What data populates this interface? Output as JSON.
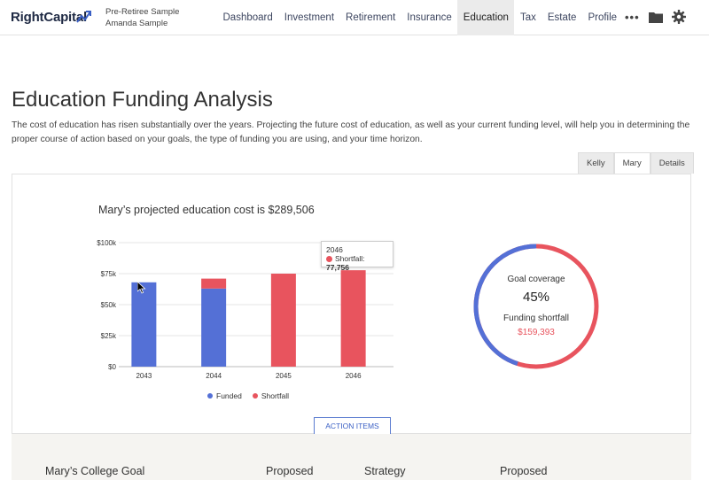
{
  "brand": {
    "name": "RightCapital"
  },
  "client": {
    "line1": "Pre-Retiree Sample",
    "line2": "Amanda Sample"
  },
  "nav": {
    "items": [
      {
        "label": "Dashboard"
      },
      {
        "label": "Investment"
      },
      {
        "label": "Retirement"
      },
      {
        "label": "Insurance"
      },
      {
        "label": "Education"
      },
      {
        "label": "Tax"
      },
      {
        "label": "Estate"
      },
      {
        "label": "Profile"
      }
    ],
    "active": "Education",
    "more": "•••"
  },
  "page": {
    "title": "Education Funding Analysis",
    "description": "The cost of education has risen substantially over the years. Projecting the future cost of education, as well as your current funding level, will help you in determining the proper course of action based on your goals, the type of funding you are using, and your time horizon."
  },
  "tabs": [
    {
      "label": "Kelly"
    },
    {
      "label": "Mary"
    },
    {
      "label": "Details"
    }
  ],
  "active_tab": "Mary",
  "chart_title": "Mary’s projected education cost is $289,506",
  "tooltip": {
    "year": "2046",
    "label": "Shortfall:",
    "value": "77,756"
  },
  "chart_data": {
    "type": "bar",
    "categories": [
      "2043",
      "2044",
      "2045",
      "2046"
    ],
    "series": [
      {
        "name": "Funded",
        "values": [
          68000,
          63000,
          0,
          0
        ],
        "color": "#5470d6"
      },
      {
        "name": "Shortfall",
        "values": [
          0,
          8000,
          75000,
          77756
        ],
        "color": "#e8545e"
      }
    ],
    "y_ticks": [
      "$0",
      "$25k",
      "$50k",
      "$75k",
      "$100k"
    ],
    "ylim": [
      0,
      100000
    ],
    "stacked": true,
    "legend_position": "bottom"
  },
  "donut": {
    "label": "Goal coverage",
    "percent": "45%",
    "coverage_fraction": 0.45,
    "shortfall_label": "Funding shortfall",
    "shortfall_value": "$159,393",
    "colors": {
      "covered": "#5470d6",
      "shortfall": "#e8545e"
    }
  },
  "action_button": "ACTION ITEMS",
  "bottom": {
    "col1": "Mary’s College Goal",
    "col2": "Proposed",
    "col3": "Strategy",
    "col4": "Proposed"
  }
}
